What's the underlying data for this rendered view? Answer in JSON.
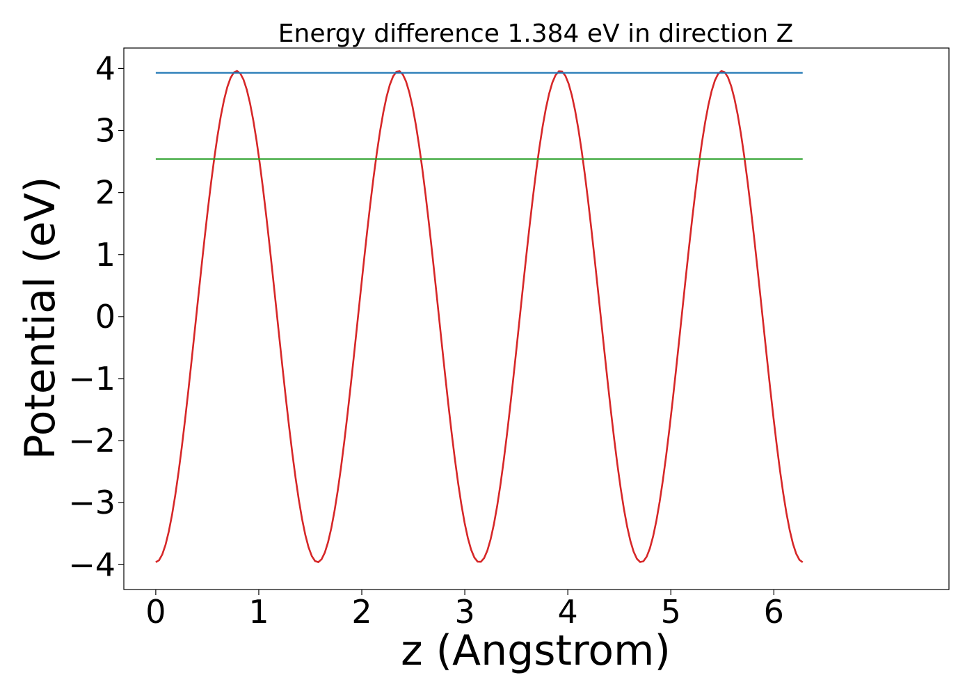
{
  "chart_data": {
    "type": "line",
    "title": "Energy difference 1.384 eV in direction Z",
    "xlabel": "z (Angstrom)",
    "ylabel": "Potential (eV)",
    "xlim": [
      -0.31,
      7.7
    ],
    "ylim": [
      -4.4,
      4.33
    ],
    "xticks": [
      0,
      1,
      2,
      3,
      4,
      5,
      6
    ],
    "xtick_labels": [
      "0",
      "1",
      "2",
      "3",
      "4",
      "5",
      "6"
    ],
    "yticks": [
      -4,
      -3,
      -2,
      -1,
      0,
      1,
      2,
      3,
      4
    ],
    "ytick_labels": [
      "−4",
      "−3",
      "−2",
      "−1",
      "0",
      "1",
      "2",
      "3",
      "4"
    ],
    "grid": false,
    "series": [
      {
        "description": "potential curve",
        "color": "#d62728",
        "function": "-3.96*cos(4*z)",
        "x_range": [
          0,
          6.28
        ],
        "num_points": 200
      },
      {
        "description": "max level",
        "color": "#1f77b4",
        "x": [
          0,
          6.28
        ],
        "y": [
          3.93,
          3.93
        ]
      },
      {
        "description": "level",
        "color": "#2ca02c",
        "x": [
          0,
          6.28
        ],
        "y": [
          2.54,
          2.54
        ]
      }
    ]
  }
}
